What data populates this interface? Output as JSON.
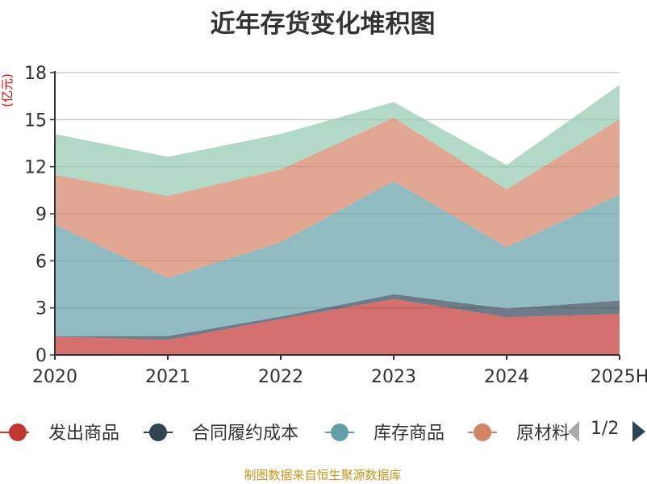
{
  "title": "近年存货变化堆积图",
  "footer": "制图数据来自恒生聚源数据库",
  "legend_page": "1/2",
  "chart_data": {
    "type": "area",
    "stacked": true,
    "title": "近年存货变化堆积图",
    "ylabel": "(亿元)",
    "xlabel": "",
    "categories": [
      "2020",
      "2021",
      "2022",
      "2023",
      "2024",
      "2025H"
    ],
    "ylim": [
      0,
      18
    ],
    "yticks": [
      "0",
      "3",
      "6",
      "9",
      "12",
      "15",
      "18"
    ],
    "grid": true,
    "legend_position": "bottom",
    "series": [
      {
        "name": "发出商品",
        "color": "#c23531",
        "values": [
          1.17,
          0.95,
          2.29,
          3.56,
          2.41,
          2.61
        ]
      },
      {
        "name": "合同履约成本",
        "color": "#2f4554",
        "values": [
          0.03,
          0.25,
          0.15,
          0.31,
          0.55,
          0.86
        ]
      },
      {
        "name": "库存商品",
        "color": "#61a0a8",
        "values": [
          7.12,
          3.7,
          4.74,
          7.21,
          3.91,
          6.75
        ]
      },
      {
        "name": "原材料",
        "color": "#d48265",
        "values": [
          3.16,
          5.24,
          4.64,
          4.04,
          3.68,
          4.81
        ]
      },
      {
        "color": "#91c7ae",
        "values": [
          2.61,
          2.49,
          2.27,
          1.0,
          1.56,
          2.19
        ]
      }
    ]
  }
}
